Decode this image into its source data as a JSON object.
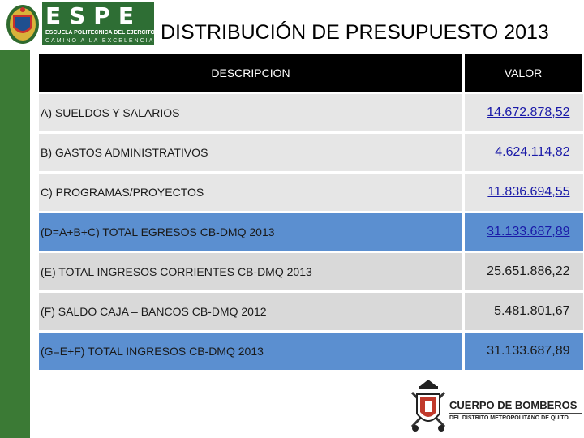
{
  "header": {
    "brand_word": "ESPE",
    "brand_subtitle": "ESCUELA POLITECNICA DEL EJERCITO",
    "brand_motto": "CAMINO A LA EXCELENCIA",
    "title": "DISTRIBUCIÓN DE PRESUPUESTO 2013"
  },
  "table": {
    "col_description": "DESCRIPCION",
    "col_value": "VALOR",
    "rows": [
      {
        "desc": "A) SUELDOS Y SALARIOS",
        "value": "14.672.878,52",
        "style": "light"
      },
      {
        "desc": "B) GASTOS ADMINISTRATIVOS",
        "value": "4.624.114,82",
        "style": "light"
      },
      {
        "desc": "C) PROGRAMAS/PROYECTOS",
        "value": "11.836.694,55",
        "style": "light"
      },
      {
        "desc": "(D=A+B+C) TOTAL EGRESOS CB-DMQ 2013",
        "value": "31.133.687,89",
        "style": "blue"
      },
      {
        "desc": "(E) TOTAL INGRESOS CORRIENTES CB-DMQ 2013",
        "value": "25.651.886,22",
        "style": "gray"
      },
      {
        "desc": "(F) SALDO CAJA – BANCOS CB-DMQ 2012",
        "value": "5.481.801,67",
        "style": "gray"
      },
      {
        "desc": "(G=E+F) TOTAL INGRESOS CB-DMQ 2013",
        "value": "31.133.687,89",
        "style": "blue"
      }
    ]
  },
  "footer_logo": {
    "line1": "CUERPO DE BOMBEROS",
    "line2": "DEL DISTRITO METROPOLITANO DE QUITO"
  },
  "colors": {
    "sidebar_green": "#3b7a35",
    "header_black": "#000000",
    "highlight_blue": "#5b8fd0",
    "row_light": "#e6e6e6",
    "row_gray": "#d9d9d9"
  }
}
